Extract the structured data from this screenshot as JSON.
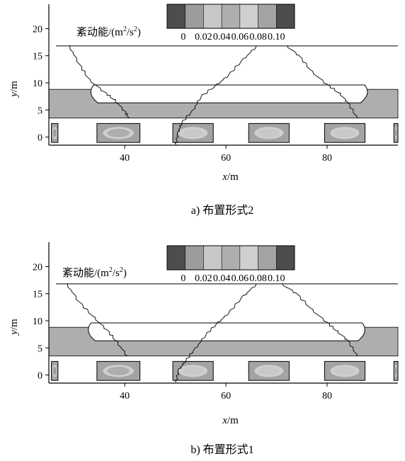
{
  "chart_data": [
    {
      "type": "heatmap",
      "caption": "a) 布置形式2",
      "xlabel": {
        "var": "x",
        "unit": "/m"
      },
      "ylabel": {
        "var": "y",
        "unit": "/m"
      },
      "xlim": [
        25,
        94
      ],
      "ylim": [
        -1.5,
        24.5
      ],
      "xticks": [
        40,
        60,
        80
      ],
      "yticks": [
        0,
        5,
        10,
        15,
        20
      ],
      "colorbar": {
        "label": "紊动能/(m²/s²)",
        "label_parts": [
          "紊动能/(m",
          "2",
          "/s",
          "2",
          ")"
        ],
        "tick_labels": [
          "0",
          "0.02",
          "0.04",
          "0.06",
          "0.08",
          "0.10"
        ],
        "levels": [
          0,
          0.017,
          0.033,
          0.05,
          0.067,
          0.083,
          0.1
        ],
        "colors": [
          "#4d4d4d",
          "#9c9c9c",
          "#c8c8c8",
          "#aeaeae",
          "#cfcfcf",
          "#a3a3a3",
          "#4d4d4d"
        ]
      },
      "regions": {
        "upper_line_y": 16.8,
        "band": {
          "y": [
            3.5,
            8.8
          ],
          "level": 0.058
        },
        "hull": {
          "x": [
            33,
            88
          ],
          "y": [
            6.3,
            9.6
          ]
        },
        "wake": [
          {
            "x": [
              25.5,
              26.8
            ],
            "y": [
              -1,
              2.5
            ],
            "level": 0.02
          },
          {
            "x": [
              34.5,
              43
            ],
            "y": [
              -1,
              2.5
            ],
            "level": 0.06
          },
          {
            "x": [
              49.5,
              57.5
            ],
            "y": [
              -1,
              2.5
            ],
            "level": 0.05
          },
          {
            "x": [
              64.5,
              72.5
            ],
            "y": [
              -1,
              2.5
            ],
            "level": 0.05
          },
          {
            "x": [
              79.5,
              87.5
            ],
            "y": [
              -1,
              2.5
            ],
            "level": 0.04
          },
          {
            "x": [
              93.2,
              94
            ],
            "y": [
              -1,
              2.5
            ],
            "level": 0.02
          }
        ],
        "fronts": [
          [
            [
              29,
              16.8
            ],
            [
              31,
              13.5
            ],
            [
              33,
              10.5
            ],
            [
              36,
              8.3
            ],
            [
              38,
              6.8
            ],
            [
              40,
              4.8
            ],
            [
              40.8,
              3.5
            ]
          ],
          [
            [
              50,
              -1.5
            ],
            [
              50.6,
              0.8
            ],
            [
              51.2,
              2.7
            ],
            [
              53.5,
              4.8
            ],
            [
              55,
              7.5
            ],
            [
              58.3,
              9.6
            ],
            [
              60.5,
              11.5
            ],
            [
              63.5,
              14.3
            ],
            [
              66,
              16.8
            ]
          ],
          [
            [
              72,
              16.8
            ],
            [
              74.5,
              15
            ],
            [
              77,
              12
            ],
            [
              80,
              9.7
            ],
            [
              82.5,
              8
            ],
            [
              84,
              6.5
            ],
            [
              86,
              3.5
            ]
          ]
        ]
      }
    },
    {
      "type": "heatmap",
      "caption": "b) 布置形式1",
      "xlabel": {
        "var": "x",
        "unit": "/m"
      },
      "ylabel": {
        "var": "y",
        "unit": "/m"
      },
      "xlim": [
        25,
        94
      ],
      "ylim": [
        -1.5,
        24.5
      ],
      "xticks": [
        40,
        60,
        80
      ],
      "yticks": [
        0,
        5,
        10,
        15,
        20
      ],
      "colorbar": {
        "label": "紊动能/(m²/s²)",
        "label_parts": [
          "紊动能/(m",
          "2",
          "/s",
          "2",
          ")"
        ],
        "tick_labels": [
          "0",
          "0.02",
          "0.04",
          "0.06",
          "0.08",
          "0.10"
        ],
        "levels": [
          0,
          0.017,
          0.033,
          0.05,
          0.067,
          0.083,
          0.1
        ],
        "colors": [
          "#4d4d4d",
          "#9c9c9c",
          "#c8c8c8",
          "#aeaeae",
          "#cfcfcf",
          "#a3a3a3",
          "#4d4d4d"
        ]
      },
      "regions": {
        "upper_line_y": 16.8,
        "band": {
          "y": [
            3.5,
            8.8
          ],
          "level": 0.058
        },
        "hull": {
          "x": [
            32.5,
            87.5
          ],
          "y": [
            6.3,
            9.6
          ]
        },
        "wake": [
          {
            "x": [
              25.5,
              26.8
            ],
            "y": [
              -1,
              2.5
            ],
            "level": 0.02
          },
          {
            "x": [
              34.5,
              43
            ],
            "y": [
              -1,
              2.5
            ],
            "level": 0.06
          },
          {
            "x": [
              49.5,
              57.5
            ],
            "y": [
              -1,
              2.5
            ],
            "level": 0.05
          },
          {
            "x": [
              64.5,
              72.5
            ],
            "y": [
              -1,
              2.5
            ],
            "level": 0.05
          },
          {
            "x": [
              79.5,
              87.5
            ],
            "y": [
              -1,
              2.5
            ],
            "level": 0.04
          },
          {
            "x": [
              93.2,
              94
            ],
            "y": [
              -1,
              2.5
            ],
            "level": 0.02
          }
        ],
        "fronts": [
          [
            [
              28.5,
              16.8
            ],
            [
              31,
              13.5
            ],
            [
              34,
              10.5
            ],
            [
              36.5,
              8.3
            ],
            [
              38.5,
              6
            ],
            [
              40.5,
              3.5
            ]
          ],
          [
            [
              50,
              -1.5
            ],
            [
              50.8,
              1
            ],
            [
              52,
              2.7
            ],
            [
              54,
              4.8
            ],
            [
              56,
              7.5
            ],
            [
              58.5,
              9.6
            ],
            [
              60.5,
              11.5
            ],
            [
              63.5,
              14.5
            ],
            [
              66,
              16.8
            ]
          ],
          [
            [
              71,
              16.8
            ],
            [
              74,
              15
            ],
            [
              77,
              12
            ],
            [
              80,
              9.7
            ],
            [
              82,
              8
            ],
            [
              84,
              6.5
            ],
            [
              86,
              3.5
            ]
          ]
        ]
      }
    }
  ]
}
